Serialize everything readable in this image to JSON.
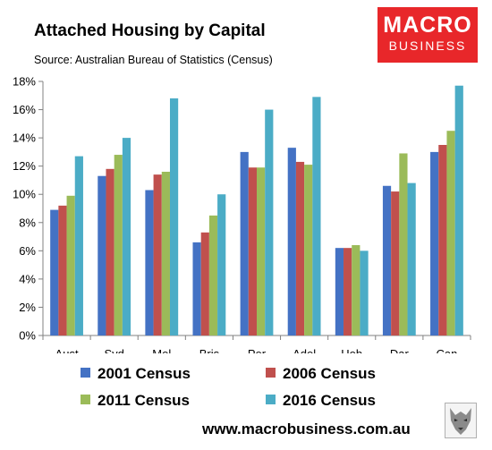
{
  "title": "Attached Housing by Capital",
  "subtitle": "Source: Australian Bureau of Statistics (Census)",
  "logo": {
    "line1": "MACRO",
    "line2": "BUSINESS"
  },
  "footer": "www.macrobusiness.com.au",
  "chart_data": {
    "type": "bar",
    "title": "Attached Housing by Capital",
    "xlabel": "",
    "ylabel": "",
    "categories": [
      "Aust",
      "Syd",
      "Mel",
      "Bris",
      "Per",
      "Adel",
      "Hob",
      "Dar",
      "Can"
    ],
    "ylim": [
      0,
      18
    ],
    "yticks": [
      0,
      2,
      4,
      6,
      8,
      10,
      12,
      14,
      16,
      18
    ],
    "ytick_labels": [
      "0%",
      "2%",
      "4%",
      "6%",
      "8%",
      "10%",
      "12%",
      "14%",
      "16%",
      "18%"
    ],
    "grid": false,
    "legend_position": "bottom",
    "series": [
      {
        "name": "2001 Census",
        "color": "#4472c4",
        "values": [
          8.9,
          11.3,
          10.3,
          6.6,
          13.0,
          13.3,
          6.2,
          10.6,
          13.0
        ]
      },
      {
        "name": "2006 Census",
        "color": "#c0504d",
        "values": [
          9.2,
          11.8,
          11.4,
          7.3,
          11.9,
          12.3,
          6.2,
          10.2,
          13.5
        ]
      },
      {
        "name": "2011 Census",
        "color": "#9bbb59",
        "values": [
          9.9,
          12.8,
          11.6,
          8.5,
          11.9,
          12.1,
          6.4,
          12.9,
          14.5
        ]
      },
      {
        "name": "2016 Census",
        "color": "#4bacc6",
        "values": [
          12.7,
          14.0,
          16.8,
          10.0,
          16.0,
          16.9,
          6.0,
          10.8,
          17.7
        ]
      }
    ]
  }
}
